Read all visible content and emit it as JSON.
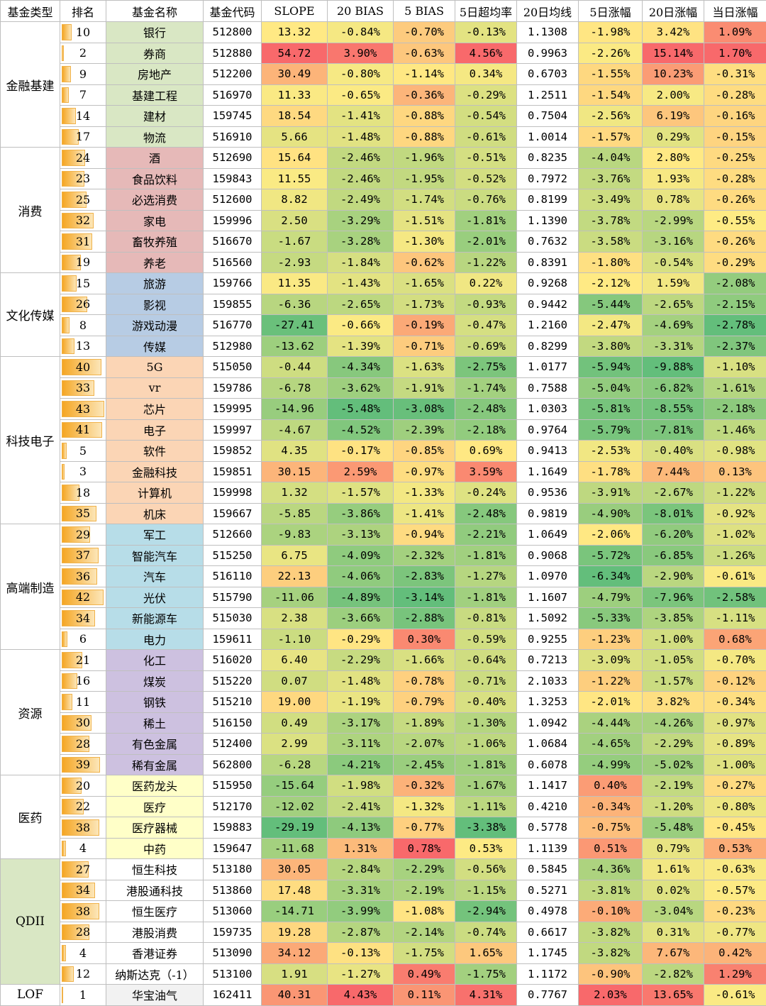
{
  "headers": [
    "基金类型",
    "排名",
    "基金名称",
    "基金代码",
    "SLOPE",
    "20 BIAS",
    "5 BIAS",
    "5日超均率",
    "20日均线",
    "5日涨幅",
    "20日涨幅",
    "当日涨幅"
  ],
  "groups": [
    {
      "name": "金融基建",
      "bg": "#ffffff",
      "name_bg": "#d9e7c4",
      "rows": [
        {
          "rank": "10",
          "name": "银行",
          "code": "512800",
          "slope": "13.32",
          "bias20": "-0.84%",
          "bias5": "-0.70%",
          "over5": "-0.13%",
          "ma20": "1.1308",
          "chg5": "-1.98%",
          "chg20": "3.42%",
          "chg1": "1.09%"
        },
        {
          "rank": "2",
          "name": "券商",
          "code": "512880",
          "slope": "54.72",
          "bias20": "3.90%",
          "bias5": "-0.63%",
          "over5": "4.56%",
          "ma20": "0.9963",
          "chg5": "-2.26%",
          "chg20": "15.14%",
          "chg1": "1.70%"
        },
        {
          "rank": "9",
          "name": "房地产",
          "code": "512200",
          "slope": "30.49",
          "bias20": "-0.80%",
          "bias5": "-1.14%",
          "over5": "0.34%",
          "ma20": "0.6703",
          "chg5": "-1.55%",
          "chg20": "10.23%",
          "chg1": "-0.31%"
        },
        {
          "rank": "7",
          "name": "基建工程",
          "code": "516970",
          "slope": "11.33",
          "bias20": "-0.65%",
          "bias5": "-0.36%",
          "over5": "-0.29%",
          "ma20": "1.2511",
          "chg5": "-1.54%",
          "chg20": "2.00%",
          "chg1": "-0.28%"
        },
        {
          "rank": "14",
          "name": "建材",
          "code": "159745",
          "slope": "18.54",
          "bias20": "-1.41%",
          "bias5": "-0.88%",
          "over5": "-0.54%",
          "ma20": "0.7504",
          "chg5": "-2.56%",
          "chg20": "6.19%",
          "chg1": "-0.16%"
        },
        {
          "rank": "17",
          "name": "物流",
          "code": "516910",
          "slope": "5.66",
          "bias20": "-1.48%",
          "bias5": "-0.88%",
          "over5": "-0.61%",
          "ma20": "1.0014",
          "chg5": "-1.57%",
          "chg20": "0.29%",
          "chg1": "-0.15%"
        }
      ]
    },
    {
      "name": "消费",
      "bg": "#ffffff",
      "name_bg": "#e6b9b8",
      "rows": [
        {
          "rank": "24",
          "name": "酒",
          "code": "512690",
          "slope": "15.64",
          "bias20": "-2.46%",
          "bias5": "-1.96%",
          "over5": "-0.51%",
          "ma20": "0.8235",
          "chg5": "-4.04%",
          "chg20": "2.80%",
          "chg1": "-0.25%"
        },
        {
          "rank": "23",
          "name": "食品饮料",
          "code": "159843",
          "slope": "11.55",
          "bias20": "-2.46%",
          "bias5": "-1.95%",
          "over5": "-0.52%",
          "ma20": "0.7972",
          "chg5": "-3.76%",
          "chg20": "1.93%",
          "chg1": "-0.28%"
        },
        {
          "rank": "25",
          "name": "必选消费",
          "code": "512600",
          "slope": "8.82",
          "bias20": "-2.49%",
          "bias5": "-1.74%",
          "over5": "-0.76%",
          "ma20": "0.8199",
          "chg5": "-3.49%",
          "chg20": "0.78%",
          "chg1": "-0.26%"
        },
        {
          "rank": "32",
          "name": "家电",
          "code": "159996",
          "slope": "2.50",
          "bias20": "-3.29%",
          "bias5": "-1.51%",
          "over5": "-1.81%",
          "ma20": "1.1390",
          "chg5": "-3.78%",
          "chg20": "-2.99%",
          "chg1": "-0.55%"
        },
        {
          "rank": "31",
          "name": "畜牧养殖",
          "code": "516670",
          "slope": "-1.67",
          "bias20": "-3.28%",
          "bias5": "-1.30%",
          "over5": "-2.01%",
          "ma20": "0.7632",
          "chg5": "-3.58%",
          "chg20": "-3.16%",
          "chg1": "-0.26%"
        },
        {
          "rank": "19",
          "name": "养老",
          "code": "516560",
          "slope": "-2.93",
          "bias20": "-1.84%",
          "bias5": "-0.62%",
          "over5": "-1.22%",
          "ma20": "0.8391",
          "chg5": "-1.80%",
          "chg20": "-0.54%",
          "chg1": "-0.29%"
        }
      ]
    },
    {
      "name": "文化传媒",
      "bg": "#ffffff",
      "name_bg": "#b7cce4",
      "rows": [
        {
          "rank": "15",
          "name": "旅游",
          "code": "159766",
          "slope": "11.35",
          "bias20": "-1.43%",
          "bias5": "-1.65%",
          "over5": "0.22%",
          "ma20": "0.9268",
          "chg5": "-2.12%",
          "chg20": "1.59%",
          "chg1": "-2.08%"
        },
        {
          "rank": "26",
          "name": "影视",
          "code": "159855",
          "slope": "-6.36",
          "bias20": "-2.65%",
          "bias5": "-1.73%",
          "over5": "-0.93%",
          "ma20": "0.9442",
          "chg5": "-5.44%",
          "chg20": "-2.65%",
          "chg1": "-2.15%"
        },
        {
          "rank": "8",
          "name": "游戏动漫",
          "code": "516770",
          "slope": "-27.41",
          "bias20": "-0.66%",
          "bias5": "-0.19%",
          "over5": "-0.47%",
          "ma20": "1.2160",
          "chg5": "-2.47%",
          "chg20": "-4.69%",
          "chg1": "-2.78%"
        },
        {
          "rank": "13",
          "name": "传媒",
          "code": "512980",
          "slope": "-13.62",
          "bias20": "-1.39%",
          "bias5": "-0.71%",
          "over5": "-0.69%",
          "ma20": "0.8299",
          "chg5": "-3.80%",
          "chg20": "-3.31%",
          "chg1": "-2.37%"
        }
      ]
    },
    {
      "name": "科技电子",
      "bg": "#ffffff",
      "name_bg": "#fbd5b5",
      "rows": [
        {
          "rank": "40",
          "name": "5G",
          "code": "515050",
          "slope": "-0.44",
          "bias20": "-4.34%",
          "bias5": "-1.63%",
          "over5": "-2.75%",
          "ma20": "1.0177",
          "chg5": "-5.94%",
          "chg20": "-9.88%",
          "chg1": "-1.10%"
        },
        {
          "rank": "33",
          "name": "vr",
          "code": "159786",
          "slope": "-6.78",
          "bias20": "-3.62%",
          "bias5": "-1.91%",
          "over5": "-1.74%",
          "ma20": "0.7588",
          "chg5": "-5.04%",
          "chg20": "-6.82%",
          "chg1": "-1.61%"
        },
        {
          "rank": "43",
          "name": "芯片",
          "code": "159995",
          "slope": "-14.96",
          "bias20": "-5.48%",
          "bias5": "-3.08%",
          "over5": "-2.48%",
          "ma20": "1.0303",
          "chg5": "-5.81%",
          "chg20": "-8.55%",
          "chg1": "-2.18%"
        },
        {
          "rank": "41",
          "name": "电子",
          "code": "159997",
          "slope": "-4.67",
          "bias20": "-4.52%",
          "bias5": "-2.39%",
          "over5": "-2.18%",
          "ma20": "0.9764",
          "chg5": "-5.79%",
          "chg20": "-7.81%",
          "chg1": "-1.46%"
        },
        {
          "rank": "5",
          "name": "软件",
          "code": "159852",
          "slope": "4.35",
          "bias20": "-0.17%",
          "bias5": "-0.85%",
          "over5": "0.69%",
          "ma20": "0.9413",
          "chg5": "-2.53%",
          "chg20": "-0.40%",
          "chg1": "-0.98%"
        },
        {
          "rank": "3",
          "name": "金融科技",
          "code": "159851",
          "slope": "30.15",
          "bias20": "2.59%",
          "bias5": "-0.97%",
          "over5": "3.59%",
          "ma20": "1.1649",
          "chg5": "-1.78%",
          "chg20": "7.44%",
          "chg1": "0.13%"
        },
        {
          "rank": "18",
          "name": "计算机",
          "code": "159998",
          "slope": "1.32",
          "bias20": "-1.57%",
          "bias5": "-1.33%",
          "over5": "-0.24%",
          "ma20": "0.9536",
          "chg5": "-3.91%",
          "chg20": "-2.67%",
          "chg1": "-1.22%"
        },
        {
          "rank": "35",
          "name": "机床",
          "code": "159667",
          "slope": "-5.85",
          "bias20": "-3.86%",
          "bias5": "-1.41%",
          "over5": "-2.48%",
          "ma20": "0.9819",
          "chg5": "-4.90%",
          "chg20": "-8.01%",
          "chg1": "-0.92%"
        }
      ]
    },
    {
      "name": "高端制造",
      "bg": "#ffffff",
      "name_bg": "#b7dde8",
      "rows": [
        {
          "rank": "29",
          "name": "军工",
          "code": "512660",
          "slope": "-9.83",
          "bias20": "-3.13%",
          "bias5": "-0.94%",
          "over5": "-2.21%",
          "ma20": "1.0649",
          "chg5": "-2.06%",
          "chg20": "-6.20%",
          "chg1": "-1.02%"
        },
        {
          "rank": "37",
          "name": "智能汽车",
          "code": "515250",
          "slope": "6.75",
          "bias20": "-4.09%",
          "bias5": "-2.32%",
          "over5": "-1.81%",
          "ma20": "0.9068",
          "chg5": "-5.72%",
          "chg20": "-6.85%",
          "chg1": "-1.26%"
        },
        {
          "rank": "36",
          "name": "汽车",
          "code": "516110",
          "slope": "22.13",
          "bias20": "-4.06%",
          "bias5": "-2.83%",
          "over5": "-1.27%",
          "ma20": "1.0970",
          "chg5": "-6.34%",
          "chg20": "-2.90%",
          "chg1": "-0.61%"
        },
        {
          "rank": "42",
          "name": "光伏",
          "code": "515790",
          "slope": "-11.06",
          "bias20": "-4.89%",
          "bias5": "-3.14%",
          "over5": "-1.81%",
          "ma20": "1.1607",
          "chg5": "-4.79%",
          "chg20": "-7.96%",
          "chg1": "-2.58%"
        },
        {
          "rank": "34",
          "name": "新能源车",
          "code": "515030",
          "slope": "2.38",
          "bias20": "-3.66%",
          "bias5": "-2.88%",
          "over5": "-0.81%",
          "ma20": "1.5092",
          "chg5": "-5.33%",
          "chg20": "-3.85%",
          "chg1": "-1.11%"
        },
        {
          "rank": "6",
          "name": "电力",
          "code": "159611",
          "slope": "-1.10",
          "bias20": "-0.29%",
          "bias5": "0.30%",
          "over5": "-0.59%",
          "ma20": "0.9255",
          "chg5": "-1.23%",
          "chg20": "-1.00%",
          "chg1": "0.68%"
        }
      ]
    },
    {
      "name": "资源",
      "bg": "#ffffff",
      "name_bg": "#cdc1e0",
      "rows": [
        {
          "rank": "21",
          "name": "化工",
          "code": "516020",
          "slope": "6.40",
          "bias20": "-2.29%",
          "bias5": "-1.66%",
          "over5": "-0.64%",
          "ma20": "0.7213",
          "chg5": "-3.09%",
          "chg20": "-1.05%",
          "chg1": "-0.70%"
        },
        {
          "rank": "16",
          "name": "煤炭",
          "code": "515220",
          "slope": "0.07",
          "bias20": "-1.48%",
          "bias5": "-0.78%",
          "over5": "-0.71%",
          "ma20": "2.1033",
          "chg5": "-1.22%",
          "chg20": "-1.57%",
          "chg1": "-0.12%"
        },
        {
          "rank": "11",
          "name": "钢铁",
          "code": "515210",
          "slope": "19.00",
          "bias20": "-1.19%",
          "bias5": "-0.79%",
          "over5": "-0.40%",
          "ma20": "1.3253",
          "chg5": "-2.01%",
          "chg20": "3.82%",
          "chg1": "-0.34%"
        },
        {
          "rank": "30",
          "name": "稀土",
          "code": "516150",
          "slope": "0.49",
          "bias20": "-3.17%",
          "bias5": "-1.89%",
          "over5": "-1.30%",
          "ma20": "1.0942",
          "chg5": "-4.44%",
          "chg20": "-4.26%",
          "chg1": "-0.97%"
        },
        {
          "rank": "28",
          "name": "有色金属",
          "code": "512400",
          "slope": "2.99",
          "bias20": "-3.11%",
          "bias5": "-2.07%",
          "over5": "-1.06%",
          "ma20": "1.0684",
          "chg5": "-4.65%",
          "chg20": "-2.29%",
          "chg1": "-0.89%"
        },
        {
          "rank": "39",
          "name": "稀有金属",
          "code": "562800",
          "slope": "-6.28",
          "bias20": "-4.21%",
          "bias5": "-2.45%",
          "over5": "-1.81%",
          "ma20": "0.6078",
          "chg5": "-4.99%",
          "chg20": "-5.02%",
          "chg1": "-1.00%"
        }
      ]
    },
    {
      "name": "医药",
      "bg": "#ffffff",
      "name_bg": "#ffffc8",
      "rows": [
        {
          "rank": "20",
          "name": "医药龙头",
          "code": "515950",
          "slope": "-15.64",
          "bias20": "-1.98%",
          "bias5": "-0.32%",
          "over5": "-1.67%",
          "ma20": "1.1417",
          "chg5": "0.40%",
          "chg20": "-2.19%",
          "chg1": "-0.27%"
        },
        {
          "rank": "22",
          "name": "医疗",
          "code": "512170",
          "slope": "-12.02",
          "bias20": "-2.41%",
          "bias5": "-1.32%",
          "over5": "-1.11%",
          "ma20": "0.4210",
          "chg5": "-0.34%",
          "chg20": "-1.20%",
          "chg1": "-0.80%"
        },
        {
          "rank": "38",
          "name": "医疗器械",
          "code": "159883",
          "slope": "-29.19",
          "bias20": "-4.13%",
          "bias5": "-0.77%",
          "over5": "-3.38%",
          "ma20": "0.5778",
          "chg5": "-0.75%",
          "chg20": "-5.48%",
          "chg1": "-0.45%"
        },
        {
          "rank": "4",
          "name": "中药",
          "code": "159647",
          "slope": "-11.68",
          "bias20": "1.31%",
          "bias5": "0.78%",
          "over5": "0.53%",
          "ma20": "1.1139",
          "chg5": "0.51%",
          "chg20": "0.79%",
          "chg1": "0.53%"
        }
      ]
    },
    {
      "name": "QDII",
      "bg": "#d9e7c4",
      "name_bg": "#ffffff",
      "rows": [
        {
          "rank": "27",
          "name": "恒生科技",
          "code": "513180",
          "slope": "30.05",
          "bias20": "-2.84%",
          "bias5": "-2.29%",
          "over5": "-0.56%",
          "ma20": "0.5845",
          "chg5": "-4.36%",
          "chg20": "1.61%",
          "chg1": "-0.63%"
        },
        {
          "rank": "34",
          "name": "港股通科技",
          "code": "513860",
          "slope": "17.48",
          "bias20": "-3.31%",
          "bias5": "-2.19%",
          "over5": "-1.15%",
          "ma20": "0.5271",
          "chg5": "-3.81%",
          "chg20": "0.02%",
          "chg1": "-0.57%"
        },
        {
          "rank": "38",
          "name": "恒生医疗",
          "code": "513060",
          "slope": "-14.71",
          "bias20": "-3.99%",
          "bias5": "-1.08%",
          "over5": "-2.94%",
          "ma20": "0.4978",
          "chg5": "-0.10%",
          "chg20": "-3.04%",
          "chg1": "-0.23%"
        },
        {
          "rank": "28",
          "name": "港股消费",
          "code": "159735",
          "slope": "19.28",
          "bias20": "-2.87%",
          "bias5": "-2.14%",
          "over5": "-0.74%",
          "ma20": "0.6617",
          "chg5": "-3.82%",
          "chg20": "0.31%",
          "chg1": "-0.77%"
        },
        {
          "rank": "4",
          "name": "香港证券",
          "code": "513090",
          "slope": "34.12",
          "bias20": "-0.13%",
          "bias5": "-1.75%",
          "over5": "1.65%",
          "ma20": "1.1745",
          "chg5": "-3.82%",
          "chg20": "7.67%",
          "chg1": "0.42%"
        },
        {
          "rank": "12",
          "name": "纳斯达克（-1）",
          "code": "513100",
          "slope": "1.91",
          "bias20": "-1.27%",
          "bias5": "0.49%",
          "over5": "-1.75%",
          "ma20": "1.1172",
          "chg5": "-0.90%",
          "chg20": "-2.82%",
          "chg1": "1.29%"
        }
      ]
    },
    {
      "name": "LOF",
      "bg": "#ffffff",
      "name_bg": "#f2f2f2",
      "rows": [
        {
          "rank": "1",
          "name": "华宝油气",
          "code": "162411",
          "slope": "40.31",
          "bias20": "4.43%",
          "bias5": "0.11%",
          "over5": "4.31%",
          "ma20": "0.7767",
          "chg5": "2.03%",
          "chg20": "13.65%",
          "chg1": "-0.61%"
        }
      ]
    }
  ],
  "colors": {
    "scale_low": "#63be7b",
    "scale_mid": "#ffeb84",
    "scale_high": "#f8696b",
    "rank_bar": "#f5a623"
  }
}
